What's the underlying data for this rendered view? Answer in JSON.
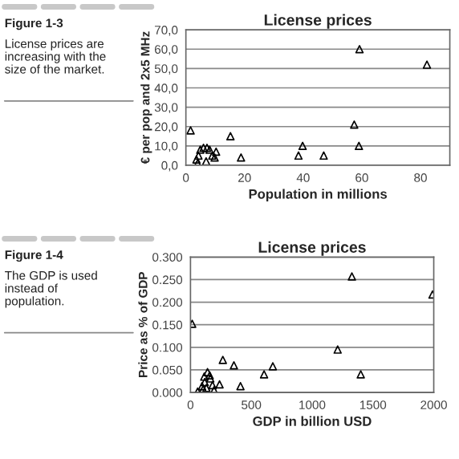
{
  "chart_data": [
    {
      "type": "scatter",
      "title": "License prices",
      "xlabel": "Population in millions",
      "ylabel": "€ per pop and 2x5 MHz",
      "annotations": [
        "Figure 1-3",
        "License prices are\nincreasing with the\nsize of the market."
      ],
      "x": [
        1.6,
        15.2,
        59.2,
        82.2,
        57.4,
        59,
        39.8,
        38.4,
        47,
        18.8,
        3.6,
        4,
        4.9,
        6,
        7.2,
        8.1,
        6.9,
        9.8,
        10.3,
        9,
        4.3
      ],
      "series": [
        {
          "color": "#000000",
          "values": [
            18,
            15,
            60,
            52,
            21,
            10,
            10,
            5,
            5,
            4,
            3,
            1,
            8,
            9,
            9,
            8,
            2,
            4,
            7,
            5,
            5
          ]
        }
      ],
      "marker": "triangle",
      "grid": "y",
      "xlim": [
        0,
        90
      ],
      "xticks": [
        0,
        20,
        40,
        60,
        80
      ],
      "ylim": [
        0,
        70
      ],
      "yticks": [
        {
          "value": 0,
          "label": "0,0"
        },
        {
          "value": 10,
          "label": "10,0"
        },
        {
          "value": 20,
          "label": "20,0"
        },
        {
          "value": 30,
          "label": "30,0"
        },
        {
          "value": 40,
          "label": "40,0"
        },
        {
          "value": 50,
          "label": "50,0"
        },
        {
          "value": 60,
          "label": "60,0"
        },
        {
          "value": 70,
          "label": "70,0"
        }
      ]
    },
    {
      "type": "scatter",
      "title": "License prices",
      "xlabel": "GDP in billion USD",
      "ylabel": "Price as % of GDP",
      "annotations": [
        "Figure 1-4",
        "The GDP is used\ninstead of\npopulation."
      ],
      "x": [
        14,
        266,
        357,
        677,
        605,
        411,
        239,
        1210,
        1327,
        1400,
        1990,
        59,
        95,
        117,
        113,
        140,
        163,
        181,
        194,
        131,
        158,
        104
      ],
      "series": [
        {
          "color": "#000000",
          "values": [
            0.152,
            0.072,
            0.06,
            0.058,
            0.04,
            0.014,
            0.018,
            0.095,
            0.257,
            0.04,
            0.217,
            0.002,
            0.014,
            0.023,
            0.035,
            0.045,
            0.031,
            0.016,
            0.005,
            0.01,
            0.038,
            0.007
          ]
        }
      ],
      "marker": "triangle",
      "grid": "y",
      "xlim": [
        0,
        2000
      ],
      "xticks": [
        0,
        500,
        1000,
        1500,
        2000
      ],
      "ylim": [
        0,
        0.3
      ],
      "yticks": [
        {
          "value": 0,
          "label": "0.000"
        },
        {
          "value": 0.05,
          "label": "0.050"
        },
        {
          "value": 0.1,
          "label": "0.100"
        },
        {
          "value": 0.15,
          "label": "0.150"
        },
        {
          "value": 0.2,
          "label": "0.200"
        },
        {
          "value": 0.25,
          "label": "0.250"
        },
        {
          "value": 0.3,
          "label": "0.300"
        }
      ]
    }
  ]
}
